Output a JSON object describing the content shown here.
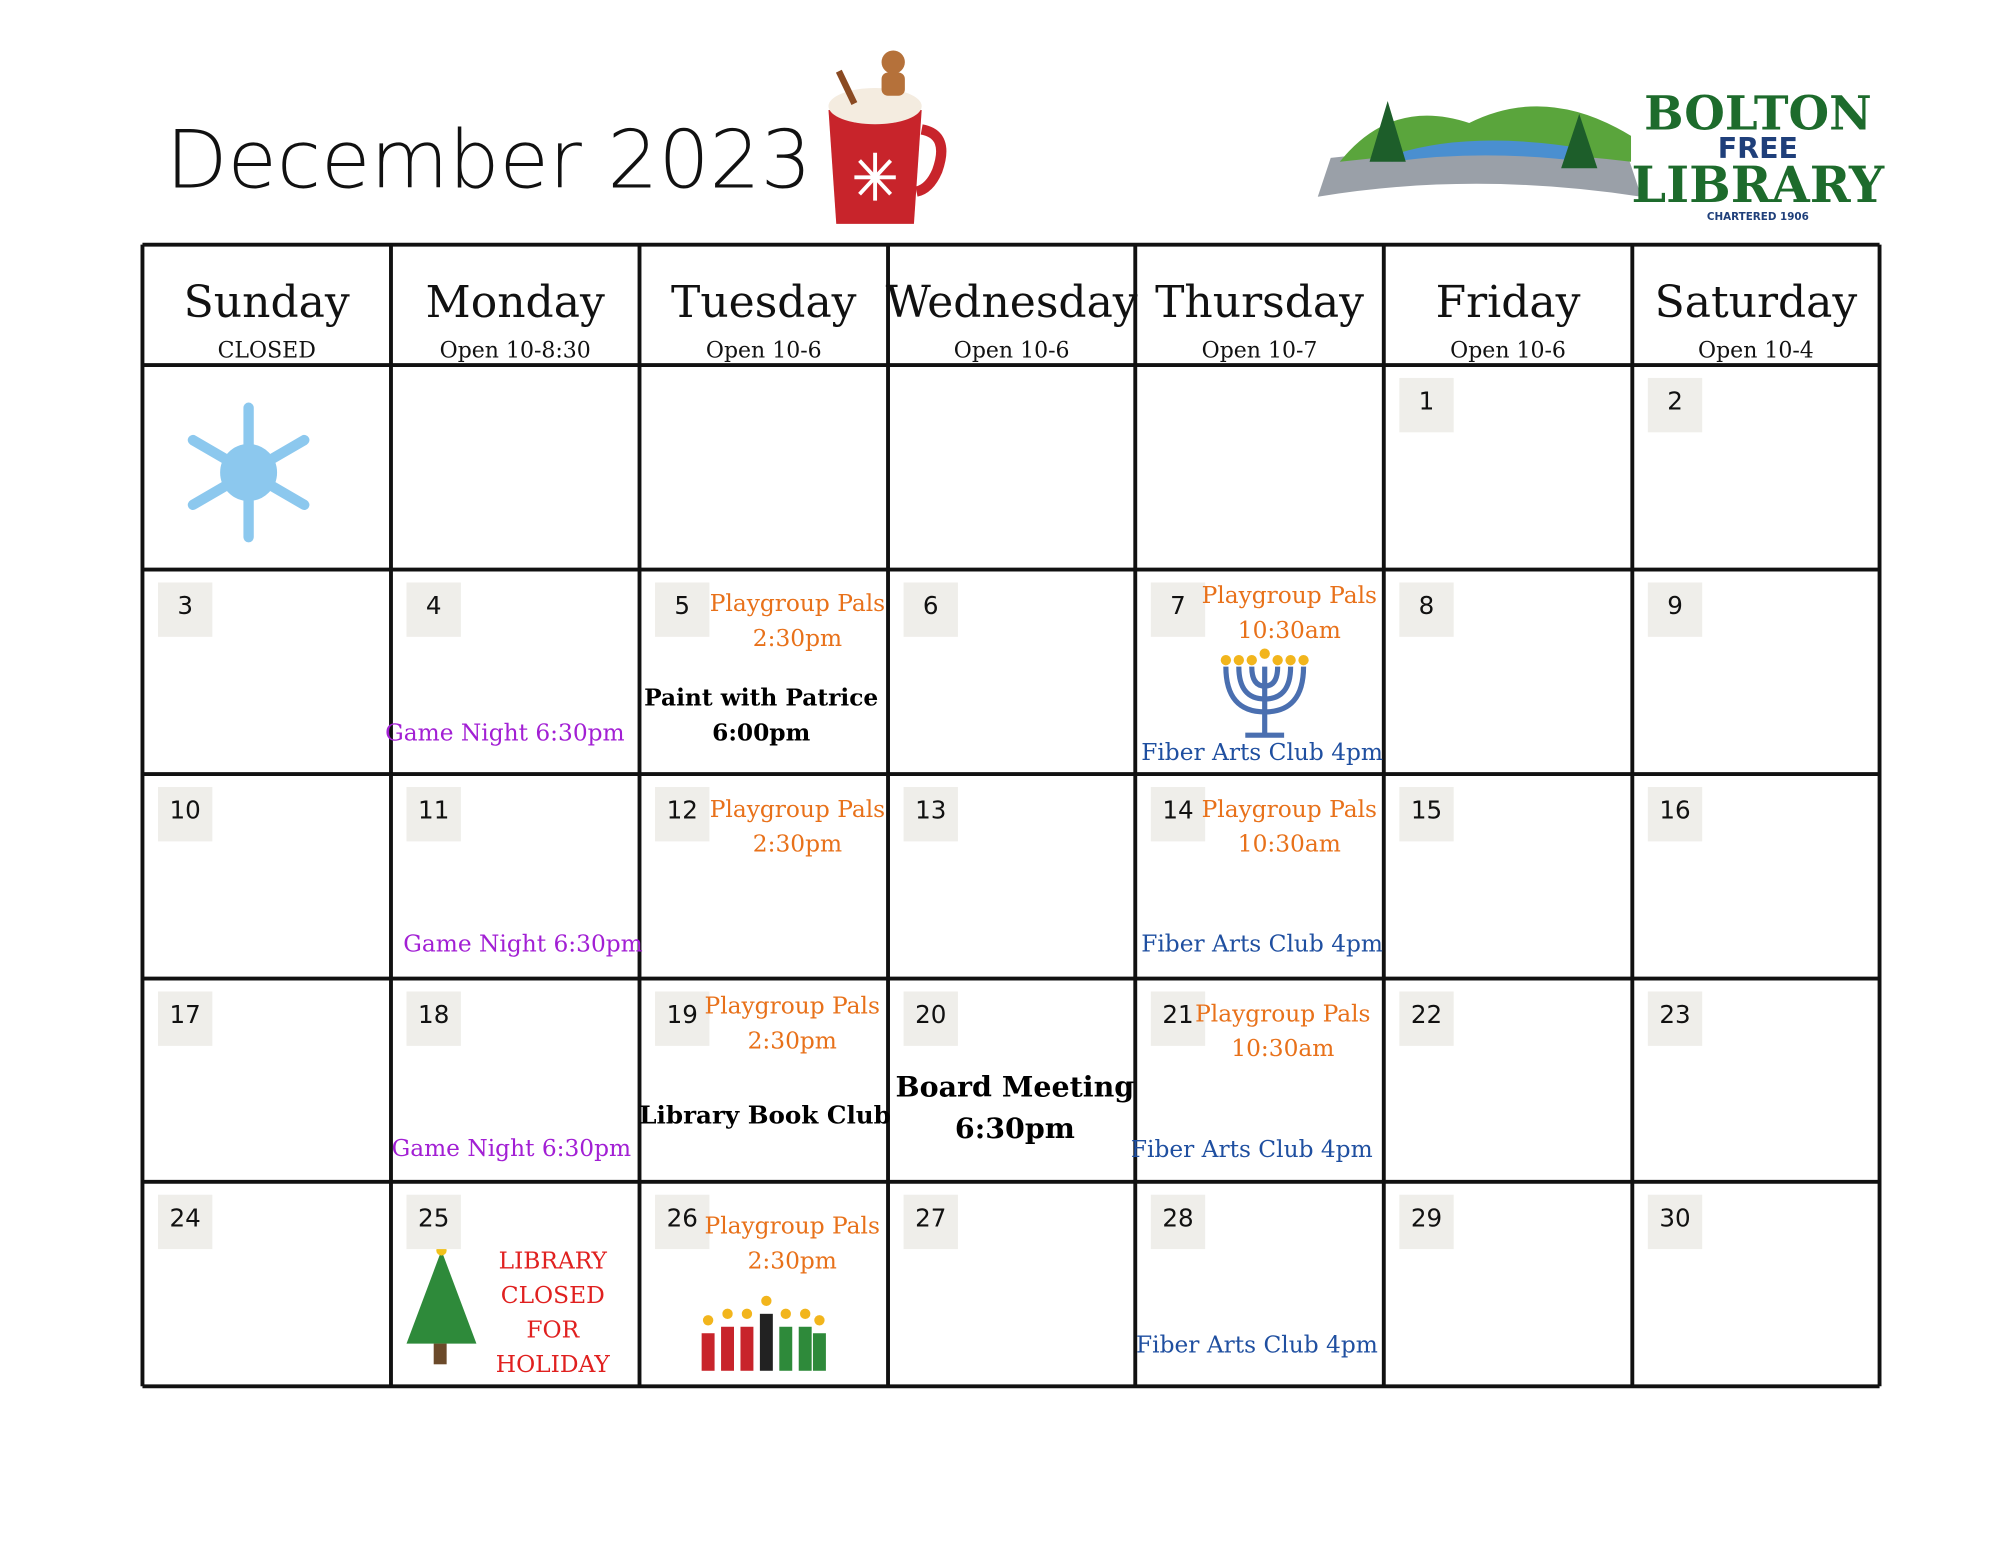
{
  "header": {
    "title": "December 2023",
    "logo": {
      "line1": "BOLTON",
      "line2": "FREE",
      "line3": "LIBRARY",
      "tagline": "CHARTERED 1906"
    }
  },
  "days": [
    {
      "name": "Sunday",
      "hours": "CLOSED"
    },
    {
      "name": "Monday",
      "hours": "Open 10-8:30"
    },
    {
      "name": "Tuesday",
      "hours": "Open 10-6"
    },
    {
      "name": "Wednesday",
      "hours": "Open 10-6"
    },
    {
      "name": "Thursday",
      "hours": "Open 10-7"
    },
    {
      "name": "Friday",
      "hours": "Open 10-6"
    },
    {
      "name": "Saturday",
      "hours": "Open 10-4"
    }
  ],
  "weeks": [
    [
      {
        "date": null,
        "events": []
      },
      {
        "date": null,
        "events": []
      },
      {
        "date": null,
        "events": []
      },
      {
        "date": null,
        "events": []
      },
      {
        "date": null,
        "events": []
      },
      {
        "date": 1,
        "events": []
      },
      {
        "date": 2,
        "events": []
      }
    ],
    [
      {
        "date": 3,
        "events": []
      },
      {
        "date": 4,
        "events": [
          {
            "lines": [
              "Game Night 6:30pm"
            ],
            "color": "#a21fd4"
          }
        ]
      },
      {
        "date": 5,
        "events": [
          {
            "lines": [
              "Playgroup Pals",
              "2:30pm"
            ],
            "color": "#e8711a"
          },
          {
            "lines": [
              "Paint with Patrice",
              "6:00pm"
            ],
            "color": "#000000"
          }
        ]
      },
      {
        "date": 6,
        "events": []
      },
      {
        "date": 7,
        "events": [
          {
            "lines": [
              "Playgroup Pals",
              "10:30am"
            ],
            "color": "#e8711a"
          },
          {
            "lines": [
              "Fiber Arts Club 4pm"
            ],
            "color": "#1f4fa0"
          }
        ]
      },
      {
        "date": 8,
        "events": []
      },
      {
        "date": 9,
        "events": []
      }
    ],
    [
      {
        "date": 10,
        "events": []
      },
      {
        "date": 11,
        "events": [
          {
            "lines": [
              "Game Night 6:30pm"
            ],
            "color": "#a21fd4"
          }
        ]
      },
      {
        "date": 12,
        "events": [
          {
            "lines": [
              "Playgroup Pals",
              "2:30pm"
            ],
            "color": "#e8711a"
          }
        ]
      },
      {
        "date": 13,
        "events": []
      },
      {
        "date": 14,
        "events": [
          {
            "lines": [
              "Playgroup Pals",
              "10:30am"
            ],
            "color": "#e8711a"
          },
          {
            "lines": [
              "Fiber Arts Club 4pm"
            ],
            "color": "#1f4fa0"
          }
        ]
      },
      {
        "date": 15,
        "events": []
      },
      {
        "date": 16,
        "events": []
      }
    ],
    [
      {
        "date": 17,
        "events": []
      },
      {
        "date": 18,
        "events": [
          {
            "lines": [
              "Game Night 6:30pm"
            ],
            "color": "#a21fd4"
          }
        ]
      },
      {
        "date": 19,
        "events": [
          {
            "lines": [
              "Playgroup Pals",
              "2:30pm"
            ],
            "color": "#e8711a"
          },
          {
            "lines": [
              "Library Book Club"
            ],
            "color": "#000000"
          }
        ]
      },
      {
        "date": 20,
        "events": [
          {
            "lines": [
              "Board Meeting",
              "6:30pm"
            ],
            "color": "#000000"
          }
        ]
      },
      {
        "date": 21,
        "events": [
          {
            "lines": [
              "Playgroup Pals",
              "10:30am"
            ],
            "color": "#e8711a"
          },
          {
            "lines": [
              "Fiber Arts Club 4pm"
            ],
            "color": "#1f4fa0"
          }
        ]
      },
      {
        "date": 22,
        "events": []
      },
      {
        "date": 23,
        "events": []
      }
    ],
    [
      {
        "date": 24,
        "events": []
      },
      {
        "date": 25,
        "events": [
          {
            "lines": [
              "LIBRARY",
              "CLOSED",
              "FOR",
              "HOLIDAY"
            ],
            "color": "#e0201f"
          }
        ]
      },
      {
        "date": 26,
        "events": [
          {
            "lines": [
              "Playgroup Pals",
              "2:30pm"
            ],
            "color": "#e8711a"
          }
        ]
      },
      {
        "date": 27,
        "events": []
      },
      {
        "date": 28,
        "events": [
          {
            "lines": [
              "Fiber Arts Club 4pm"
            ],
            "color": "#1f4fa0"
          }
        ]
      },
      {
        "date": 29,
        "events": []
      },
      {
        "date": 30,
        "events": []
      }
    ]
  ]
}
